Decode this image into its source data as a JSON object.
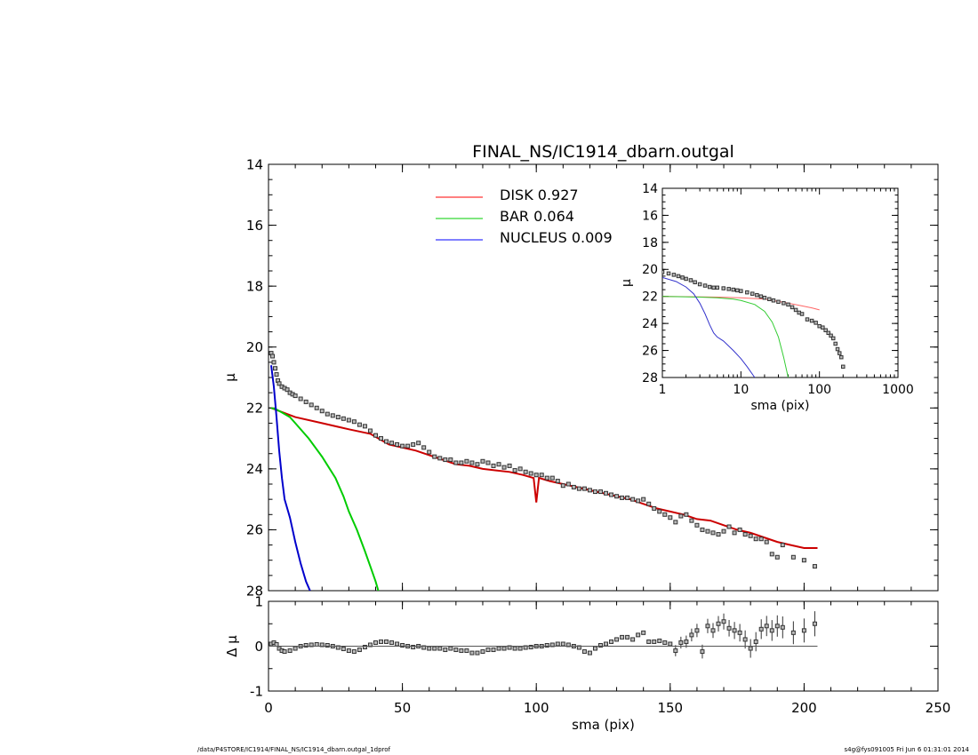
{
  "chart_data": [
    {
      "id": "main",
      "type": "scatter",
      "title": "FINAL_NS/IC1914_dbarn.outgal",
      "xlabel": "",
      "ylabel": "μ",
      "xlim": [
        0,
        250
      ],
      "ylim": [
        14,
        28
      ],
      "y_inverted": true,
      "x_ticks": [
        0,
        50,
        100,
        150,
        200,
        250
      ],
      "y_ticks": [
        14,
        16,
        18,
        20,
        22,
        24,
        26,
        28
      ],
      "legend": {
        "placement": "top-center",
        "entries": [
          {
            "label": "DISK",
            "value": "0.927",
            "color": "#ff0000"
          },
          {
            "label": "BAR",
            "value": "0.064",
            "color": "#00cc00"
          },
          {
            "label": "NUCLEUS",
            "value": "0.009",
            "color": "#0000ff"
          }
        ]
      },
      "series": [
        {
          "name": "DISK",
          "kind": "line",
          "color": "#cc0000",
          "x": [
            1,
            10,
            20,
            30,
            38,
            45,
            55,
            60,
            65,
            70,
            75,
            80,
            85,
            90,
            95,
            99,
            100,
            101,
            105,
            110,
            115,
            120,
            125,
            130,
            135,
            140,
            145,
            150,
            155,
            160,
            165,
            170,
            175,
            180,
            185,
            190,
            195,
            200,
            205
          ],
          "y": [
            22.0,
            22.3,
            22.5,
            22.7,
            22.85,
            23.2,
            23.4,
            23.55,
            23.7,
            23.85,
            23.9,
            24.0,
            24.05,
            24.1,
            24.2,
            24.3,
            25.1,
            24.3,
            24.4,
            24.5,
            24.6,
            24.7,
            24.8,
            24.9,
            25.0,
            25.15,
            25.3,
            25.4,
            25.5,
            25.65,
            25.7,
            25.85,
            26.0,
            26.1,
            26.25,
            26.4,
            26.5,
            26.6,
            26.6
          ]
        },
        {
          "name": "BAR",
          "kind": "line",
          "color": "#00cc00",
          "x": [
            1,
            3,
            5,
            8,
            10,
            15,
            20,
            25,
            28,
            30,
            33,
            36,
            38,
            40,
            41
          ],
          "y": [
            22.0,
            22.05,
            22.15,
            22.3,
            22.5,
            23.0,
            23.6,
            24.3,
            24.9,
            25.4,
            26.0,
            26.7,
            27.2,
            27.7,
            28.0
          ]
        },
        {
          "name": "NUCLEUS",
          "kind": "line",
          "color": "#0000cc",
          "x": [
            1,
            2,
            3,
            4,
            5,
            6,
            8,
            10,
            12,
            14,
            15.5
          ],
          "y": [
            20.6,
            21.3,
            22.3,
            23.4,
            24.3,
            25.0,
            25.6,
            26.4,
            27.1,
            27.7,
            28.0
          ]
        },
        {
          "name": "data",
          "kind": "points",
          "color": "#555555",
          "x": [
            1,
            1.5,
            2,
            2.5,
            3,
            3.5,
            4,
            5,
            6,
            7,
            8,
            9,
            10,
            12,
            14,
            16,
            18,
            20,
            22,
            24,
            26,
            28,
            30,
            32,
            34,
            36,
            38,
            40,
            42,
            44,
            46,
            48,
            50,
            52,
            54,
            56,
            58,
            60,
            62,
            64,
            66,
            68,
            70,
            72,
            74,
            76,
            78,
            80,
            82,
            84,
            86,
            88,
            90,
            92,
            94,
            96,
            98,
            100,
            102,
            104,
            106,
            108,
            110,
            112,
            114,
            116,
            118,
            120,
            122,
            124,
            126,
            128,
            130,
            132,
            134,
            136,
            138,
            140,
            142,
            144,
            146,
            148,
            150,
            152,
            154,
            156,
            158,
            160,
            162,
            164,
            166,
            168,
            170,
            172,
            174,
            176,
            178,
            180,
            182,
            184,
            186,
            188,
            190,
            192,
            196,
            200,
            204
          ],
          "y": [
            20.2,
            20.3,
            20.5,
            20.7,
            20.9,
            21.1,
            21.2,
            21.3,
            21.35,
            21.4,
            21.5,
            21.55,
            21.6,
            21.7,
            21.8,
            21.9,
            22.0,
            22.1,
            22.2,
            22.25,
            22.3,
            22.35,
            22.4,
            22.45,
            22.55,
            22.6,
            22.75,
            22.9,
            23.0,
            23.1,
            23.15,
            23.2,
            23.25,
            23.25,
            23.2,
            23.15,
            23.3,
            23.45,
            23.6,
            23.65,
            23.7,
            23.7,
            23.8,
            23.8,
            23.75,
            23.8,
            23.85,
            23.75,
            23.8,
            23.9,
            23.85,
            23.95,
            23.9,
            24.05,
            24.0,
            24.1,
            24.15,
            24.2,
            24.2,
            24.3,
            24.3,
            24.4,
            24.55,
            24.5,
            24.6,
            24.65,
            24.65,
            24.7,
            24.75,
            24.75,
            24.8,
            24.85,
            24.9,
            24.95,
            24.95,
            25.0,
            25.05,
            25.0,
            25.15,
            25.3,
            25.4,
            25.5,
            25.6,
            25.75,
            25.55,
            25.5,
            25.7,
            25.85,
            26.0,
            26.05,
            26.1,
            26.15,
            26.05,
            25.9,
            26.1,
            26.0,
            26.15,
            26.2,
            26.3,
            26.3,
            26.4,
            26.8,
            26.9,
            26.5,
            26.9,
            27.0,
            27.2
          ]
        }
      ]
    },
    {
      "id": "residual",
      "type": "scatter",
      "xlabel": "sma (pix)",
      "ylabel": "Δ μ",
      "xlim": [
        0,
        250
      ],
      "ylim": [
        -1,
        1
      ],
      "x_ticks": [
        0,
        50,
        100,
        150,
        200,
        250
      ],
      "y_ticks": [
        -1,
        0,
        1
      ],
      "series": [
        {
          "name": "residuals",
          "kind": "points",
          "color": "#555555",
          "x": [
            1,
            2,
            3,
            4,
            5,
            6,
            8,
            10,
            12,
            14,
            16,
            18,
            20,
            22,
            24,
            26,
            28,
            30,
            32,
            34,
            36,
            38,
            40,
            42,
            44,
            46,
            48,
            50,
            52,
            54,
            56,
            58,
            60,
            62,
            64,
            66,
            68,
            70,
            72,
            74,
            76,
            78,
            80,
            82,
            84,
            86,
            88,
            90,
            92,
            94,
            96,
            98,
            100,
            102,
            104,
            106,
            108,
            110,
            112,
            114,
            116,
            118,
            120,
            122,
            124,
            126,
            128,
            130,
            132,
            134,
            136,
            138,
            140,
            142,
            144,
            146,
            148,
            150,
            152,
            154,
            156,
            158,
            160,
            162,
            164,
            166,
            168,
            170,
            172,
            174,
            176,
            178,
            180,
            182,
            184,
            186,
            188,
            190,
            192,
            196,
            200,
            204
          ],
          "y": [
            0.05,
            0.08,
            0.04,
            -0.05,
            -0.1,
            -0.12,
            -0.1,
            -0.05,
            0.0,
            0.02,
            0.03,
            0.04,
            0.03,
            0.02,
            0.0,
            -0.03,
            -0.06,
            -0.1,
            -0.12,
            -0.08,
            -0.02,
            0.03,
            0.08,
            0.1,
            0.1,
            0.08,
            0.05,
            0.02,
            0.0,
            -0.02,
            0.0,
            -0.03,
            -0.05,
            -0.05,
            -0.05,
            -0.08,
            -0.05,
            -0.08,
            -0.1,
            -0.1,
            -0.15,
            -0.15,
            -0.12,
            -0.08,
            -0.08,
            -0.05,
            -0.05,
            -0.03,
            -0.05,
            -0.05,
            -0.03,
            -0.02,
            0.0,
            0.0,
            0.02,
            0.03,
            0.05,
            0.05,
            0.03,
            0.0,
            -0.03,
            -0.12,
            -0.15,
            -0.05,
            0.02,
            0.05,
            0.1,
            0.15,
            0.2,
            0.2,
            0.15,
            0.25,
            0.3,
            0.1,
            0.1,
            0.12,
            0.08,
            0.05,
            -0.1,
            0.08,
            0.1,
            0.25,
            0.35,
            -0.12,
            0.45,
            0.35,
            0.5,
            0.55,
            0.4,
            0.35,
            0.3,
            0.15,
            -0.05,
            0.1,
            0.38,
            0.45,
            0.35,
            0.45,
            0.42,
            0.3,
            0.35,
            0.5
          ],
          "note_err": true
        },
        {
          "name": "zero",
          "kind": "hline",
          "value": 0,
          "color": "#555555"
        }
      ]
    },
    {
      "id": "inset",
      "type": "scatter",
      "xlabel": "sma (pix)",
      "ylabel": "μ",
      "xlim": [
        1,
        1000
      ],
      "ylim": [
        14,
        28
      ],
      "x_scale": "log",
      "y_inverted": true,
      "x_ticks": [
        1,
        10,
        100,
        1000
      ],
      "y_ticks": [
        14,
        16,
        18,
        20,
        22,
        24,
        26,
        28
      ],
      "series": [
        {
          "name": "DISK",
          "kind": "line",
          "color": "#ff6666",
          "x": [
            1,
            2,
            5,
            10,
            20,
            40,
            60,
            80,
            100
          ],
          "y": [
            22.0,
            22.02,
            22.05,
            22.1,
            22.2,
            22.5,
            22.7,
            22.85,
            23.0
          ]
        },
        {
          "name": "BAR",
          "kind": "line",
          "color": "#33cc33",
          "x": [
            1,
            3,
            5,
            8,
            10,
            15,
            20,
            25,
            30,
            35,
            40
          ],
          "y": [
            22.0,
            22.05,
            22.1,
            22.2,
            22.3,
            22.6,
            23.1,
            23.9,
            25.0,
            26.5,
            28.0
          ]
        },
        {
          "name": "NUCLEUS",
          "kind": "line",
          "color": "#3333cc",
          "x": [
            1,
            1.5,
            2,
            2.5,
            3,
            3.5,
            4,
            4.5,
            5,
            6,
            8,
            10,
            12,
            15
          ],
          "y": [
            20.6,
            20.9,
            21.3,
            21.8,
            22.5,
            23.3,
            24.1,
            24.7,
            25.0,
            25.3,
            26.0,
            26.6,
            27.2,
            28.0
          ]
        },
        {
          "name": "data",
          "kind": "points",
          "color": "#444444",
          "x": [
            1,
            1.2,
            1.4,
            1.6,
            1.8,
            2,
            2.3,
            2.6,
            3,
            3.5,
            4,
            4.5,
            5,
            6,
            7,
            8,
            9,
            10,
            12,
            14,
            16,
            18,
            20,
            23,
            26,
            30,
            35,
            40,
            45,
            50,
            55,
            60,
            70,
            80,
            90,
            100,
            110,
            120,
            130,
            140,
            150,
            160,
            170,
            180,
            190,
            200
          ],
          "y": [
            20.2,
            20.3,
            20.4,
            20.5,
            20.6,
            20.7,
            20.8,
            20.95,
            21.1,
            21.2,
            21.3,
            21.35,
            21.35,
            21.4,
            21.45,
            21.5,
            21.55,
            21.6,
            21.7,
            21.8,
            21.9,
            22.0,
            22.1,
            22.2,
            22.3,
            22.4,
            22.5,
            22.6,
            22.8,
            23.0,
            23.2,
            23.3,
            23.7,
            23.8,
            23.95,
            24.2,
            24.3,
            24.5,
            24.7,
            24.9,
            25.1,
            25.5,
            25.9,
            26.2,
            26.5,
            27.2
          ]
        }
      ]
    }
  ],
  "footer": {
    "left": "/data/P4STORE/IC1914/FINAL_NS/IC1914_dbarn.outgal_1dprof",
    "right": "s4g@fys091005  Fri Jun  6 01:31:01 2014"
  }
}
